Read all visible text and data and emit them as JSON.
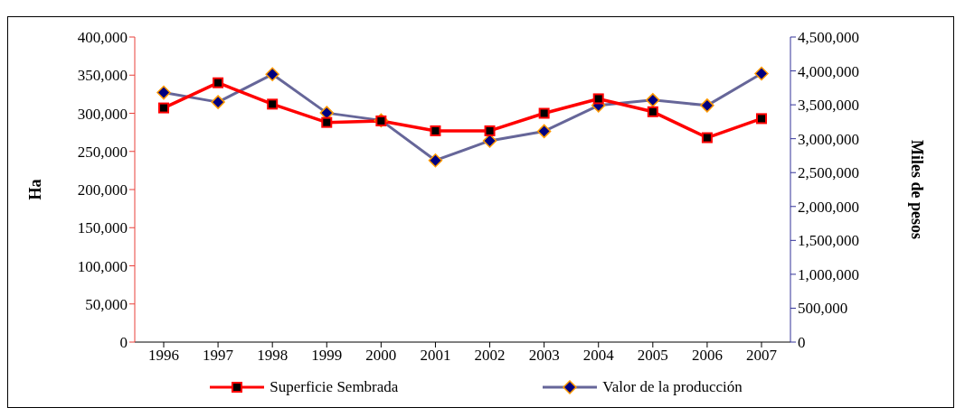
{
  "chart_data": {
    "type": "line",
    "categories": [
      "1996",
      "1997",
      "1998",
      "1999",
      "2000",
      "2001",
      "2002",
      "2003",
      "2004",
      "2005",
      "2006",
      "2007"
    ],
    "series": [
      {
        "name": "Superficie Sembrada",
        "color": "#ff0000",
        "marker": "square",
        "values": [
          307000,
          340000,
          312000,
          288000,
          290000,
          277000,
          277000,
          300000,
          319000,
          302000,
          268000,
          293000
        ]
      },
      {
        "name": "Valor de la producción",
        "color": "#666699",
        "marker": "diamond",
        "axis": "y2",
        "values": [
          3680000,
          3540000,
          3950000,
          3380000,
          3270000,
          2680000,
          2970000,
          3110000,
          3490000,
          3570000,
          3490000,
          3960000
        ]
      }
    ],
    "ylabel": "Ha",
    "y2label": "Miles de pesos",
    "ylim": [
      0,
      400000
    ],
    "yticks": [
      0,
      {
        "value": 50000,
        "label": "50,000"
      },
      {
        "value": 100000,
        "label": "100,000"
      },
      {
        "value": 150000,
        "label": "150,000"
      },
      {
        "value": 200000,
        "label": "200,000"
      },
      {
        "value": 250000,
        "label": "250,000"
      },
      {
        "value": 300000,
        "label": "300,000"
      },
      {
        "value": 350000,
        "label": "350,000"
      },
      {
        "value": 400000,
        "label": "400,000"
      }
    ],
    "y2lim": [
      0,
      4500000
    ],
    "y2ticks": [
      0,
      {
        "value": 500000,
        "label": "500,000"
      },
      {
        "value": 1000000,
        "label": "1,000,000"
      },
      {
        "value": 1500000,
        "label": "1,500,000"
      },
      {
        "value": 2000000,
        "label": "2,000,000"
      },
      {
        "value": 2500000,
        "label": "2,500,000"
      },
      {
        "value": 3000000,
        "label": "3,000,000"
      },
      {
        "value": 3500000,
        "label": "3,500,000"
      },
      {
        "value": 4000000,
        "label": "4,000,000"
      },
      {
        "value": 4500000,
        "label": "4,500,000"
      }
    ],
    "grid": false,
    "legend": "bottom"
  }
}
